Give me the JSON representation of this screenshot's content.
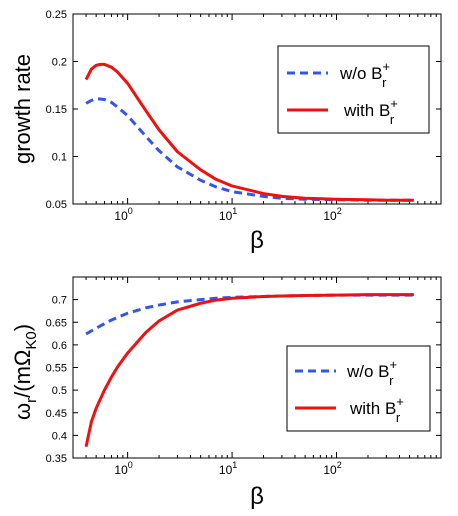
{
  "chart_data": [
    {
      "type": "line",
      "xscale": "log",
      "xlabel": "β",
      "ylabel": "growth rate",
      "xlim": [
        0.3,
        1000
      ],
      "ylim": [
        0.05,
        0.25
      ],
      "xticks": [
        1,
        10,
        100
      ],
      "xtick_labels": [
        {
          "base": "10",
          "exp": "0"
        },
        {
          "base": "10",
          "exp": "1"
        },
        {
          "base": "10",
          "exp": "2"
        }
      ],
      "yticks": [
        "0.05",
        "0.1",
        "0.15",
        "0.2",
        "0.25"
      ],
      "legend_position": "top-right",
      "legend": [
        {
          "text": "w/o B",
          "sub": "r",
          "sup": "+"
        },
        {
          "text": "with B",
          "sub": "r",
          "sup": "+"
        }
      ],
      "series": [
        {
          "color": "#3355ee",
          "dash": "dashed",
          "x": [
            0.4,
            0.45,
            0.5,
            0.6,
            0.7,
            0.8,
            1,
            1.5,
            2,
            3,
            5,
            7,
            10,
            20,
            30,
            50,
            100,
            200,
            300,
            550
          ],
          "y": [
            0.156,
            0.159,
            0.161,
            0.16,
            0.157,
            0.152,
            0.143,
            0.121,
            0.106,
            0.089,
            0.075,
            0.068,
            0.063,
            0.058,
            0.056,
            0.055,
            0.0545,
            0.054,
            0.054,
            0.054
          ]
        },
        {
          "color": "#ee1111",
          "dash": "solid",
          "x": [
            0.4,
            0.45,
            0.5,
            0.55,
            0.6,
            0.7,
            0.8,
            1,
            1.5,
            2,
            3,
            5,
            7,
            10,
            20,
            30,
            50,
            100,
            200,
            300,
            550
          ],
          "y": [
            0.181,
            0.192,
            0.196,
            0.197,
            0.197,
            0.194,
            0.189,
            0.177,
            0.148,
            0.128,
            0.105,
            0.086,
            0.076,
            0.069,
            0.061,
            0.058,
            0.056,
            0.055,
            0.0545,
            0.054,
            0.054
          ]
        }
      ]
    },
    {
      "type": "line",
      "xscale": "log",
      "xlabel": "β",
      "ylabel_parts": {
        "a": "ω",
        "a_sub": "r",
        "b": "/(mΩ",
        "b_sub": "K0",
        "c": ")"
      },
      "xlim": [
        0.3,
        1000
      ],
      "ylim": [
        0.35,
        0.75
      ],
      "xticks": [
        1,
        10,
        100
      ],
      "xtick_labels": [
        {
          "base": "10",
          "exp": "0"
        },
        {
          "base": "10",
          "exp": "1"
        },
        {
          "base": "10",
          "exp": "2"
        }
      ],
      "yticks": [
        "0.35",
        "0.4",
        "0.45",
        "0.5",
        "0.55",
        "0.6",
        "0.65",
        "0.7"
      ],
      "legend_position": "lower-right",
      "legend": [
        {
          "text": "w/o B",
          "sub": "r",
          "sup": "+"
        },
        {
          "text": "with B",
          "sub": "r",
          "sup": "+"
        }
      ],
      "series": [
        {
          "color": "#3355ee",
          "dash": "dashed",
          "x": [
            0.4,
            0.5,
            0.7,
            1,
            1.5,
            2,
            3,
            5,
            7,
            10,
            20,
            30,
            50,
            100,
            200,
            300,
            550
          ],
          "y": [
            0.624,
            0.637,
            0.655,
            0.67,
            0.682,
            0.688,
            0.695,
            0.7,
            0.703,
            0.705,
            0.707,
            0.708,
            0.709,
            0.71,
            0.71,
            0.71,
            0.71
          ]
        },
        {
          "color": "#ee1111",
          "dash": "solid",
          "x": [
            0.4,
            0.45,
            0.5,
            0.6,
            0.7,
            0.8,
            1,
            1.5,
            2,
            3,
            5,
            7,
            10,
            20,
            30,
            50,
            100,
            200,
            300,
            550
          ],
          "y": [
            0.375,
            0.43,
            0.46,
            0.5,
            0.529,
            0.551,
            0.582,
            0.628,
            0.653,
            0.677,
            0.692,
            0.699,
            0.703,
            0.707,
            0.708,
            0.709,
            0.71,
            0.711,
            0.711,
            0.711
          ]
        }
      ]
    }
  ]
}
